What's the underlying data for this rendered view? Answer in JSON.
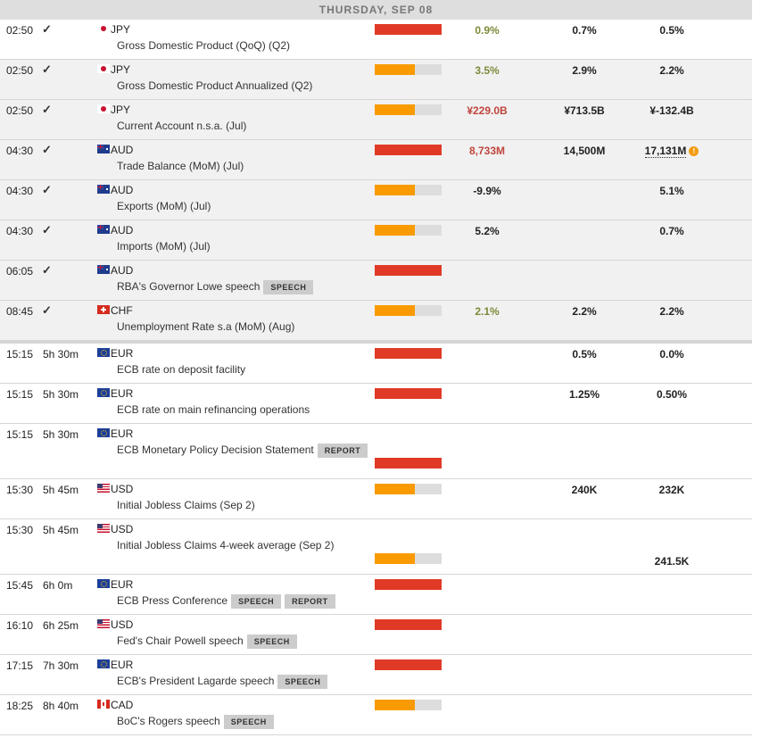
{
  "day_header": "THURSDAY, SEP 08",
  "colors": {
    "high": "#e03a27",
    "medium": "#f99b00",
    "empty": "#dddddd",
    "better": "#7b8b3a",
    "worse": "#c0453d"
  },
  "past_events": [
    {
      "time": "02:50",
      "currency": "JPY",
      "flag": "jp",
      "event": "Gross Domestic Product (QoQ) (Q2)",
      "impact": "high",
      "actual": "0.9%",
      "actual_tone": "good",
      "forecast": "0.7%",
      "previous": "0.5%"
    },
    {
      "time": "02:50",
      "currency": "JPY",
      "flag": "jp",
      "event": "Gross Domestic Product Annualized (Q2)",
      "impact": "medium",
      "actual": "3.5%",
      "actual_tone": "good",
      "forecast": "2.9%",
      "previous": "2.2%"
    },
    {
      "time": "02:50",
      "currency": "JPY",
      "flag": "jp",
      "event": "Current Account n.s.a. (Jul)",
      "impact": "medium",
      "actual": "¥229.0B",
      "actual_tone": "bad",
      "forecast": "¥713.5B",
      "previous": "¥-132.4B"
    },
    {
      "time": "04:30",
      "currency": "AUD",
      "flag": "au",
      "event": "Trade Balance (MoM) (Jul)",
      "impact": "high",
      "actual": "8,733M",
      "actual_tone": "bad",
      "forecast": "14,500M",
      "previous": "17,131M",
      "previous_revised": true
    },
    {
      "time": "04:30",
      "currency": "AUD",
      "flag": "au",
      "event": "Exports (MoM) (Jul)",
      "impact": "medium",
      "actual": "-9.9%",
      "actual_tone": "",
      "forecast": "",
      "previous": "5.1%"
    },
    {
      "time": "04:30",
      "currency": "AUD",
      "flag": "au",
      "event": "Imports (MoM) (Jul)",
      "impact": "medium",
      "actual": "5.2%",
      "actual_tone": "",
      "forecast": "",
      "previous": "0.7%"
    },
    {
      "time": "06:05",
      "currency": "AUD",
      "flag": "au",
      "event": "RBA's Governor Lowe speech",
      "tags": [
        "SPEECH"
      ],
      "impact": "high",
      "actual": "",
      "forecast": "",
      "previous": ""
    },
    {
      "time": "08:45",
      "currency": "CHF",
      "flag": "ch",
      "event": "Unemployment Rate s.a (MoM) (Aug)",
      "impact": "medium",
      "actual": "2.1%",
      "actual_tone": "good",
      "forecast": "2.2%",
      "previous": "2.2%"
    }
  ],
  "upcoming_events": [
    {
      "time": "15:15",
      "remaining": "5h 30m",
      "currency": "EUR",
      "flag": "eu",
      "event": "ECB rate on deposit facility",
      "impact": "high",
      "forecast": "0.5%",
      "previous": "0.0%"
    },
    {
      "time": "15:15",
      "remaining": "5h 30m",
      "currency": "EUR",
      "flag": "eu",
      "event": "ECB rate on main refinancing operations",
      "impact": "high",
      "forecast": "1.25%",
      "previous": "0.50%"
    },
    {
      "time": "15:15",
      "remaining": "5h 30m",
      "currency": "EUR",
      "flag": "eu",
      "event": "ECB Monetary Policy Decision Statement",
      "tags": [
        "REPORT"
      ],
      "impact": "high",
      "tall": true,
      "forecast": "",
      "previous": ""
    },
    {
      "time": "15:30",
      "remaining": "5h 45m",
      "currency": "USD",
      "flag": "us",
      "event": "Initial Jobless Claims (Sep 2)",
      "impact": "medium",
      "forecast": "240K",
      "previous": "232K"
    },
    {
      "time": "15:30",
      "remaining": "5h 45m",
      "currency": "USD",
      "flag": "us",
      "event": "Initial Jobless Claims 4-week average (Sep 2)",
      "impact": "medium",
      "tall": true,
      "forecast": "",
      "previous": "241.5K"
    },
    {
      "time": "15:45",
      "remaining": "6h 0m",
      "currency": "EUR",
      "flag": "eu",
      "event": "ECB Press Conference",
      "tags": [
        "SPEECH",
        "REPORT"
      ],
      "impact": "high",
      "forecast": "",
      "previous": ""
    },
    {
      "time": "16:10",
      "remaining": "6h 25m",
      "currency": "USD",
      "flag": "us",
      "event": "Fed's Chair Powell speech",
      "tags": [
        "SPEECH"
      ],
      "impact": "high",
      "forecast": "",
      "previous": ""
    },
    {
      "time": "17:15",
      "remaining": "7h 30m",
      "currency": "EUR",
      "flag": "eu",
      "event": "ECB's President Lagarde speech",
      "tags": [
        "SPEECH"
      ],
      "impact": "high",
      "forecast": "",
      "previous": ""
    },
    {
      "time": "18:25",
      "remaining": "8h 40m",
      "currency": "CAD",
      "flag": "ca",
      "event": "BoC's Rogers speech",
      "tags": [
        "SPEECH"
      ],
      "impact": "medium",
      "forecast": "",
      "previous": ""
    }
  ]
}
